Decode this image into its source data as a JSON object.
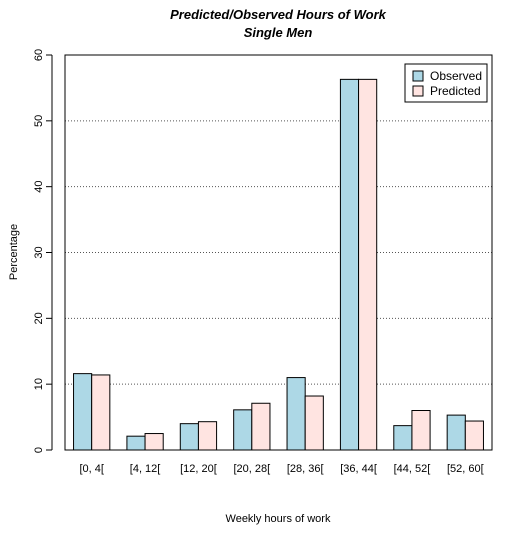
{
  "chart_data": {
    "type": "bar",
    "title": "Predicted/Observed Hours of Work",
    "subtitle": "Single Men",
    "xlabel": "Weekly hours of work",
    "ylabel": "Percentage",
    "categories": [
      "[0, 4[",
      "[4, 12[",
      "[12, 20[",
      "[20, 28[",
      "[28, 36[",
      "[36, 44[",
      "[44, 52[",
      "[52, 60["
    ],
    "series": [
      {
        "name": "Observed",
        "values": [
          11.6,
          2.1,
          4.0,
          6.1,
          11.0,
          56.3,
          3.7,
          5.3
        ],
        "color": "#add8e6"
      },
      {
        "name": "Predicted",
        "values": [
          11.4,
          2.5,
          4.3,
          7.1,
          8.2,
          56.3,
          6.0,
          4.4
        ],
        "color": "#ffe4e1"
      }
    ],
    "ylim": [
      0,
      60
    ],
    "yticks": [
      0,
      10,
      20,
      30,
      40,
      50,
      60
    ],
    "grid": "horizontal dotted",
    "legend": "top-right"
  }
}
